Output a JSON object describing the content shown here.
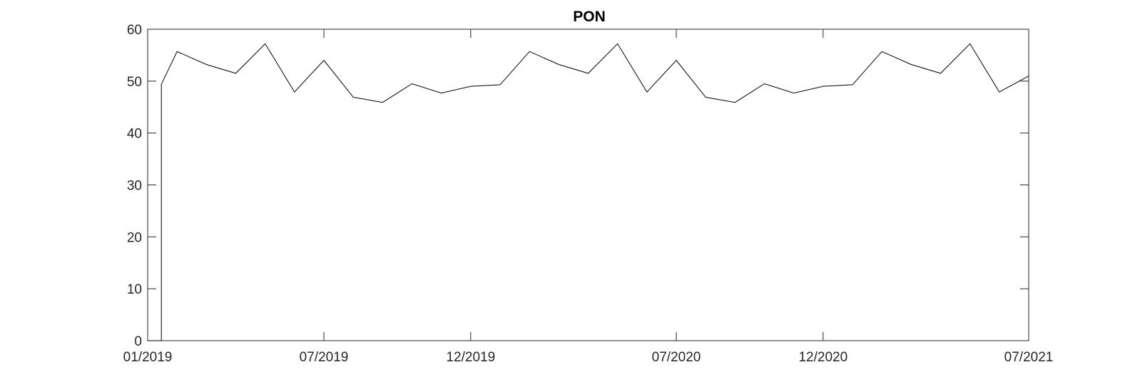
{
  "chart_data": {
    "type": "line",
    "title": "PON",
    "xlabel": "",
    "ylabel": "",
    "x_axis": "time (months)",
    "xlim": [
      "2019-01",
      "2021-07"
    ],
    "ylim": [
      0,
      60
    ],
    "y_ticks": [
      0,
      10,
      20,
      30,
      40,
      50,
      60
    ],
    "x_ticks": [
      {
        "value": "2019-01",
        "label": "01/2019"
      },
      {
        "value": "2019-07",
        "label": "07/2019"
      },
      {
        "value": "2019-12",
        "label": "12/2019"
      },
      {
        "value": "2020-07",
        "label": "07/2020"
      },
      {
        "value": "2020-12",
        "label": "12/2020"
      },
      {
        "value": "2021-07",
        "label": "07/2021"
      }
    ],
    "grid": false,
    "line_color": "#000000",
    "series": [
      {
        "x": [
          "2019-01-15",
          "2019-01-15",
          "2019-02",
          "2019-03",
          "2019-04",
          "2019-05",
          "2019-06",
          "2019-07",
          "2019-08",
          "2019-09",
          "2019-10",
          "2019-11",
          "2019-12",
          "2020-01",
          "2020-02",
          "2020-03",
          "2020-04",
          "2020-05",
          "2020-06",
          "2020-07",
          "2020-08",
          "2020-09",
          "2020-10",
          "2020-11",
          "2020-12",
          "2021-01",
          "2021-02",
          "2021-03",
          "2021-04",
          "2021-05",
          "2021-06",
          "2021-07"
        ],
        "y": [
          0,
          49.4,
          55.7,
          53.2,
          51.5,
          57.2,
          47.9,
          54.0,
          46.9,
          45.9,
          49.5,
          47.7,
          49.0,
          49.3,
          55.7,
          53.2,
          51.5,
          57.2,
          47.9,
          54.0,
          46.9,
          45.9,
          49.5,
          47.7,
          49.0,
          49.3,
          55.7,
          53.2,
          51.5,
          57.2,
          47.9,
          51.0
        ]
      }
    ]
  }
}
